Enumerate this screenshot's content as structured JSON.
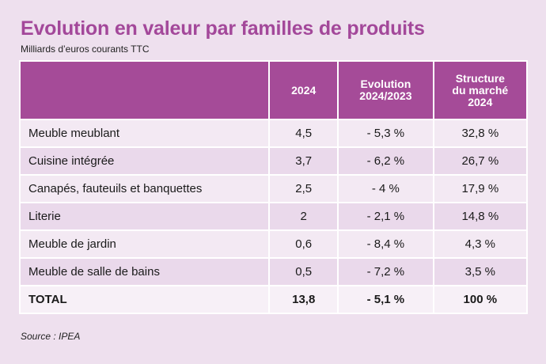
{
  "title": "Evolution en valeur par familles de produits",
  "subtitle": "Milliards d’euros courants TTC",
  "table": {
    "headers": [
      "",
      "2024",
      "Evolution\n2024/2023",
      "Structure\ndu marché\n2024"
    ],
    "rows": [
      [
        "Meuble meublant",
        "4,5",
        "- 5,3 %",
        "32,8 %"
      ],
      [
        "Cuisine intégrée",
        "3,7",
        "- 6,2 %",
        "26,7 %"
      ],
      [
        "Canapés, fauteuils et banquettes",
        "2,5",
        "- 4 %",
        "17,9 %"
      ],
      [
        "Literie",
        "2",
        "- 2,1 %",
        "14,8 %"
      ],
      [
        "Meuble de jardin",
        "0,6",
        "- 8,4 %",
        "4,3 %"
      ],
      [
        "Meuble de salle de bains",
        "0,5",
        "- 7,2 %",
        "3,5 %"
      ]
    ],
    "total": [
      "TOTAL",
      "13,8",
      "- 5,1 %",
      "100 %"
    ]
  },
  "source": "Source : IPEA",
  "colors": {
    "title": "#a3489a",
    "header_bg": "#a54b98",
    "row_light": "#f3e9f3",
    "row_dark": "#ead9eb",
    "background": "#eee0ee"
  }
}
